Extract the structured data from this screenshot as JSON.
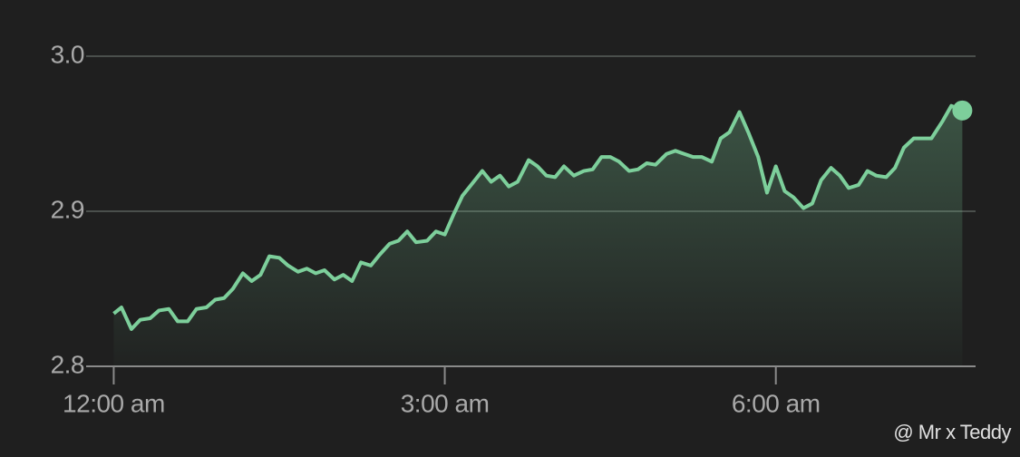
{
  "chart_data": {
    "type": "line",
    "x": [
      0,
      0.07,
      0.16,
      0.24,
      0.33,
      0.41,
      0.5,
      0.58,
      0.67,
      0.75,
      0.84,
      0.92,
      1.0,
      1.08,
      1.17,
      1.25,
      1.33,
      1.41,
      1.5,
      1.58,
      1.67,
      1.75,
      1.83,
      1.91,
      2.0,
      2.08,
      2.16,
      2.24,
      2.33,
      2.41,
      2.5,
      2.58,
      2.66,
      2.74,
      2.84,
      2.92,
      3.0,
      3.08,
      3.16,
      3.25,
      3.34,
      3.42,
      3.5,
      3.58,
      3.66,
      3.76,
      3.84,
      3.92,
      4.0,
      4.08,
      4.17,
      4.26,
      4.34,
      4.42,
      4.5,
      4.58,
      4.67,
      4.75,
      4.83,
      4.91,
      5.01,
      5.09,
      5.17,
      5.25,
      5.33,
      5.42,
      5.5,
      5.58,
      5.67,
      5.75,
      5.84,
      5.92,
      6.0,
      6.08,
      6.16,
      6.25,
      6.33,
      6.41,
      6.5,
      6.58,
      6.66,
      6.75,
      6.83,
      6.91,
      7.0,
      7.08,
      7.16,
      7.25,
      7.33,
      7.41,
      7.51,
      7.59,
      7.69
    ],
    "series": [
      {
        "color": "#7dcf9b",
        "values": [
          2.834,
          2.838,
          2.824,
          2.83,
          2.831,
          2.836,
          2.837,
          2.829,
          2.829,
          2.837,
          2.838,
          2.843,
          2.844,
          2.85,
          2.86,
          2.855,
          2.859,
          2.871,
          2.87,
          2.865,
          2.861,
          2.863,
          2.86,
          2.862,
          2.856,
          2.859,
          2.855,
          2.867,
          2.865,
          2.872,
          2.879,
          2.881,
          2.887,
          2.88,
          2.881,
          2.887,
          2.885,
          2.898,
          2.91,
          2.918,
          2.926,
          2.919,
          2.923,
          2.916,
          2.919,
          2.933,
          2.929,
          2.923,
          2.922,
          2.929,
          2.923,
          2.926,
          2.927,
          2.935,
          2.935,
          2.932,
          2.926,
          2.927,
          2.931,
          2.93,
          2.937,
          2.939,
          2.937,
          2.935,
          2.935,
          2.932,
          2.947,
          2.951,
          2.964,
          2.951,
          2.935,
          2.912,
          2.929,
          2.913,
          2.909,
          2.902,
          2.905,
          2.92,
          2.928,
          2.923,
          2.915,
          2.917,
          2.926,
          2.923,
          2.922,
          2.928,
          2.941,
          2.947,
          2.947,
          2.947,
          2.958,
          2.968,
          2.965
        ]
      }
    ],
    "xlim": [
      -0.25,
      7.81
    ],
    "xticks": [
      {
        "value": 0,
        "label": "12:00 am"
      },
      {
        "value": 3,
        "label": "3:00 am"
      },
      {
        "value": 6,
        "label": "6:00 am"
      }
    ],
    "ylim": [
      2.8,
      3.0
    ],
    "yticks": [
      2.8,
      2.9,
      {
        "value": 3.0,
        "label": "3.0"
      }
    ],
    "grid": true,
    "watermark": "@ Mr x Teddy"
  }
}
